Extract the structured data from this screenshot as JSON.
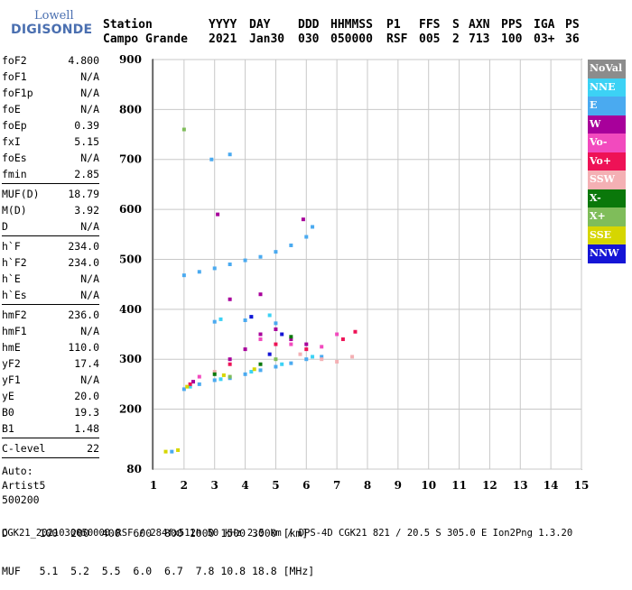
{
  "logo": {
    "top": "Lowell",
    "main": "DIGISONDE"
  },
  "header": {
    "labels": [
      "Station",
      "YYYY",
      "DAY",
      "DDD",
      "HHMMSS",
      "P1",
      "FFS",
      "S",
      "AXN",
      "PPS",
      "IGA",
      "PS"
    ],
    "values": [
      "Campo Grande",
      "2021",
      "Jan30",
      "030",
      "050000",
      "RSF",
      "005",
      "2",
      "713",
      "100",
      "03+",
      "36"
    ]
  },
  "params": [
    {
      "key": "foF2",
      "value": "4.800"
    },
    {
      "key": "foF1",
      "value": "N/A"
    },
    {
      "key": "foF1p",
      "value": "N/A"
    },
    {
      "key": "foE",
      "value": "N/A"
    },
    {
      "key": "foEp",
      "value": "0.39"
    },
    {
      "key": "fxI",
      "value": "5.15"
    },
    {
      "key": "foEs",
      "value": "N/A"
    },
    {
      "key": "fmin",
      "value": "2.85"
    },
    {
      "sep": true
    },
    {
      "key": "MUF(D)",
      "value": "18.79"
    },
    {
      "key": "M(D)",
      "value": "3.92"
    },
    {
      "key": "D",
      "value": "N/A"
    },
    {
      "sep": true
    },
    {
      "key": "h`F",
      "value": "234.0"
    },
    {
      "key": "h`F2",
      "value": "234.0"
    },
    {
      "key": "h`E",
      "value": "N/A"
    },
    {
      "key": "h`Es",
      "value": "N/A"
    },
    {
      "sep": true
    },
    {
      "key": "hmF2",
      "value": "236.0"
    },
    {
      "key": "hmF1",
      "value": "N/A"
    },
    {
      "key": "hmE",
      "value": "110.0"
    },
    {
      "key": "yF2",
      "value": "17.4"
    },
    {
      "key": "yF1",
      "value": "N/A"
    },
    {
      "key": "yE",
      "value": "20.0"
    },
    {
      "key": "B0",
      "value": "19.3"
    },
    {
      "key": "B1",
      "value": "1.48"
    },
    {
      "sep": true
    },
    {
      "key": "C-level",
      "value": "22"
    },
    {
      "sep": true
    }
  ],
  "auto": [
    "Auto:",
    "Artist5",
    "500200"
  ],
  "freq_table": {
    "d_label": "D",
    "d_values": "100  200  400  600  800 1000 1500 3000 [km]",
    "muf_label": "MUF",
    "muf_values": "5.1  5.2  5.5  6.0  6.7  7.8 10.8 18.8 [MHz]"
  },
  "footer": "CGK21_2021030050000.RSF / 284fx512h 50 kHz 2.5 km / DPS-4D CGK21 821 / 20.5 S 305.0 E Ion2Png 1.3.20",
  "legend": [
    {
      "label": "NoVal",
      "color": "#8c8c8c"
    },
    {
      "label": "NNE",
      "color": "#3cd2f5"
    },
    {
      "label": "E",
      "color": "#4aaaf0"
    },
    {
      "label": "W",
      "color": "#a8009b"
    },
    {
      "label": "Vo-",
      "color": "#f24abe"
    },
    {
      "label": "Vo+",
      "color": "#ee1256"
    },
    {
      "label": "SSW",
      "color": "#f4b0b4"
    },
    {
      "label": "X-",
      "color": "#0a780a"
    },
    {
      "label": "X+",
      "color": "#7fbd5a"
    },
    {
      "label": "SSE",
      "color": "#d6d600"
    },
    {
      "label": "NNW",
      "color": "#1515d6"
    }
  ],
  "chart_data": {
    "type": "scatter",
    "xlim": [
      1,
      15
    ],
    "ylim": [
      80,
      900
    ],
    "x_ticks": [
      "1",
      "2",
      "3",
      "4",
      "5",
      "6",
      "7",
      "8",
      "9",
      "10",
      "11",
      "12",
      "13",
      "14",
      "15"
    ],
    "y_ticks": [
      "80",
      "200",
      "300",
      "400",
      "500",
      "600",
      "700",
      "800",
      "900"
    ],
    "grid": true,
    "series": [
      {
        "name": "E",
        "color": "#4aaaf0",
        "points": [
          [
            2.0,
            240
          ],
          [
            2.5,
            250
          ],
          [
            3.0,
            258
          ],
          [
            3.5,
            262
          ],
          [
            4.0,
            270
          ],
          [
            4.5,
            278
          ],
          [
            5.0,
            285
          ],
          [
            5.5,
            292
          ],
          [
            6.0,
            300
          ],
          [
            6.5,
            305
          ],
          [
            2.0,
            468
          ],
          [
            2.5,
            475
          ],
          [
            3.0,
            482
          ],
          [
            3.5,
            490
          ],
          [
            4.0,
            498
          ],
          [
            4.5,
            505
          ],
          [
            5.0,
            515
          ],
          [
            5.5,
            528
          ],
          [
            6.0,
            545
          ],
          [
            6.2,
            565
          ],
          [
            3.0,
            375
          ],
          [
            4.0,
            378
          ],
          [
            5.0,
            372
          ],
          [
            2.9,
            700
          ],
          [
            3.5,
            710
          ],
          [
            1.6,
            115
          ]
        ]
      },
      {
        "name": "NNE",
        "color": "#3cd2f5",
        "points": [
          [
            2.2,
            245
          ],
          [
            3.2,
            260
          ],
          [
            4.2,
            275
          ],
          [
            5.2,
            290
          ],
          [
            6.2,
            305
          ],
          [
            3.2,
            380
          ],
          [
            4.2,
            385
          ],
          [
            4.8,
            388
          ]
        ]
      },
      {
        "name": "W",
        "color": "#a8009b",
        "points": [
          [
            2.3,
            255
          ],
          [
            3.5,
            300
          ],
          [
            4.0,
            320
          ],
          [
            4.5,
            350
          ],
          [
            5.0,
            360
          ],
          [
            5.5,
            340
          ],
          [
            6.0,
            330
          ],
          [
            3.5,
            420
          ],
          [
            4.5,
            430
          ],
          [
            3.1,
            590
          ],
          [
            5.9,
            580
          ]
        ]
      },
      {
        "name": "Vo-",
        "color": "#f24abe",
        "points": [
          [
            2.5,
            265
          ],
          [
            4.5,
            340
          ],
          [
            5.5,
            330
          ],
          [
            6.5,
            325
          ],
          [
            7.0,
            350
          ]
        ]
      },
      {
        "name": "Vo+",
        "color": "#ee1256",
        "points": [
          [
            2.2,
            250
          ],
          [
            3.5,
            290
          ],
          [
            5.0,
            330
          ],
          [
            6.0,
            320
          ],
          [
            7.2,
            340
          ],
          [
            7.6,
            355
          ]
        ]
      },
      {
        "name": "SSW",
        "color": "#f4b0b4",
        "points": [
          [
            3.0,
            275
          ],
          [
            5.8,
            310
          ],
          [
            6.5,
            300
          ],
          [
            7.0,
            295
          ],
          [
            7.5,
            305
          ]
        ]
      },
      {
        "name": "X-",
        "color": "#0a780a",
        "points": [
          [
            3.0,
            270
          ],
          [
            4.5,
            290
          ],
          [
            5.5,
            345
          ]
        ]
      },
      {
        "name": "X+",
        "color": "#7fbd5a",
        "points": [
          [
            3.5,
            265
          ],
          [
            5.0,
            300
          ],
          [
            2.0,
            760
          ]
        ]
      },
      {
        "name": "SSE",
        "color": "#d6d600",
        "points": [
          [
            2.1,
            245
          ],
          [
            3.3,
            268
          ],
          [
            4.3,
            280
          ],
          [
            1.4,
            115
          ],
          [
            1.8,
            118
          ]
        ]
      },
      {
        "name": "NNW",
        "color": "#1515d6",
        "points": [
          [
            4.2,
            385
          ],
          [
            5.2,
            350
          ],
          [
            4.8,
            310
          ]
        ]
      }
    ]
  }
}
